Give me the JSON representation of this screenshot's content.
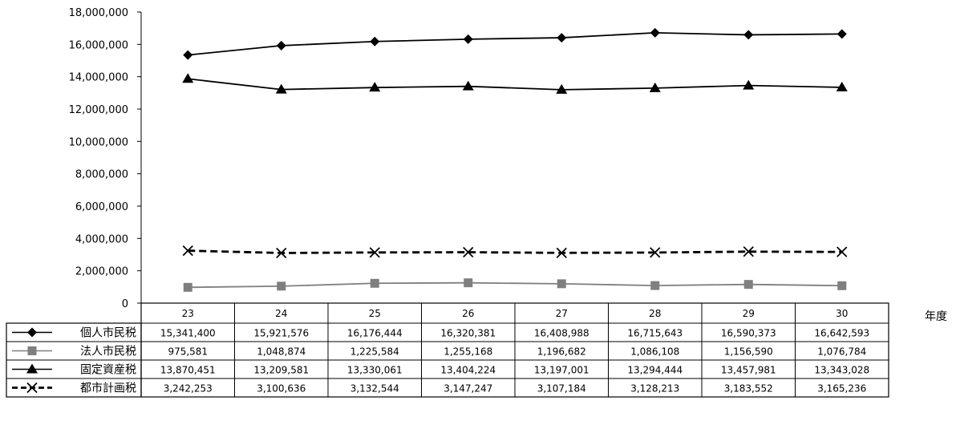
{
  "chart_data": {
    "type": "line",
    "title": "",
    "xlabel": "年度",
    "ylabel": "",
    "ylim": [
      0,
      18000000
    ],
    "yticks": [
      "0",
      "2,000,000",
      "4,000,000",
      "6,000,000",
      "8,000,000",
      "10,000,000",
      "12,000,000",
      "14,000,000",
      "16,000,000",
      "18,000,000"
    ],
    "categories": [
      "23",
      "24",
      "25",
      "26",
      "27",
      "28",
      "29",
      "30"
    ],
    "grid": false,
    "legend": "data-table",
    "series": [
      {
        "name": "個人市民税",
        "marker": "diamond",
        "line": "solid",
        "color": "#000000",
        "values": [
          15341400,
          15921576,
          16176444,
          16320381,
          16408988,
          16715643,
          16590373,
          16642593
        ],
        "labels": [
          "15,341,400",
          "15,921,576",
          "16,176,444",
          "16,320,381",
          "16,408,988",
          "16,715,643",
          "16,590,373",
          "16,642,593"
        ]
      },
      {
        "name": "法人市民税",
        "marker": "square",
        "line": "solid",
        "color": "#7f7f7f",
        "values": [
          975581,
          1048874,
          1225584,
          1255168,
          1196682,
          1086108,
          1156590,
          1076784
        ],
        "labels": [
          "975,581",
          "1,048,874",
          "1,225,584",
          "1,255,168",
          "1,196,682",
          "1,086,108",
          "1,156,590",
          "1,076,784"
        ]
      },
      {
        "name": "固定資産税",
        "marker": "triangle",
        "line": "solid",
        "color": "#000000",
        "values": [
          13870451,
          13209581,
          13330061,
          13404224,
          13197001,
          13294444,
          13457981,
          13343028
        ],
        "labels": [
          "13,870,451",
          "13,209,581",
          "13,330,061",
          "13,404,224",
          "13,197,001",
          "13,294,444",
          "13,457,981",
          "13,343,028"
        ]
      },
      {
        "name": "都市計画税",
        "marker": "x",
        "line": "dashed",
        "color": "#000000",
        "values": [
          3242253,
          3100636,
          3132544,
          3147247,
          3107184,
          3128213,
          3183552,
          3165236
        ],
        "labels": [
          "3,242,253",
          "3,100,636",
          "3,132,544",
          "3,147,247",
          "3,107,184",
          "3,128,213",
          "3,183,552",
          "3,165,236"
        ]
      }
    ]
  }
}
